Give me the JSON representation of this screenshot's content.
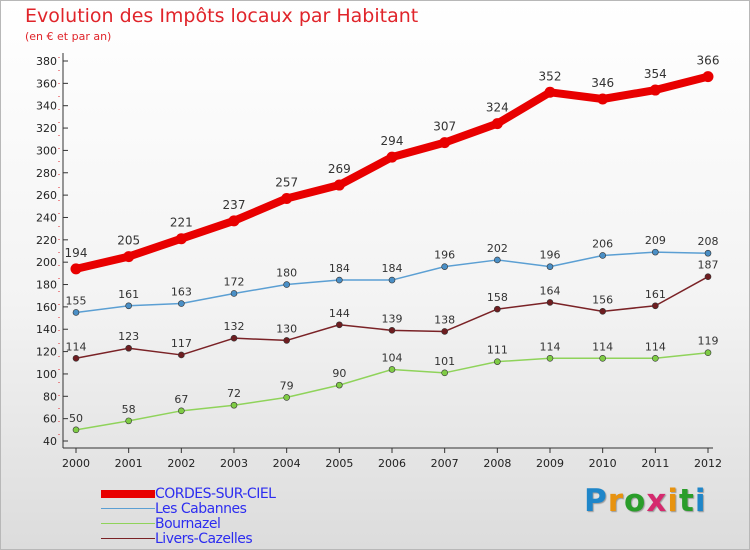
{
  "title": "Evolution des Impôts locaux par Habitant",
  "subtitle": "(en € et par an)",
  "logo": {
    "text": "Proxiti",
    "letters": [
      {
        "ch": "P",
        "color": "#1f86c9"
      },
      {
        "ch": "r",
        "color": "#e8930f"
      },
      {
        "ch": "o",
        "color": "#2a9d2a"
      },
      {
        "ch": "x",
        "color": "#d52a6e"
      },
      {
        "ch": "i",
        "color": "#e8930f"
      },
      {
        "ch": "t",
        "color": "#2a9d2a"
      },
      {
        "ch": "i",
        "color": "#1f86c9"
      }
    ]
  },
  "chart_data": {
    "type": "line",
    "x": [
      "2000",
      "2001",
      "2002",
      "2003",
      "2004",
      "2005",
      "2006",
      "2007",
      "2008",
      "2009",
      "2010",
      "2011",
      "2012"
    ],
    "ylim": [
      40,
      380
    ],
    "yticks": [
      40,
      60,
      80,
      100,
      120,
      140,
      160,
      180,
      200,
      220,
      240,
      260,
      280,
      300,
      320,
      340,
      360,
      380
    ],
    "grid": false,
    "legend_position": "bottom-left",
    "series": [
      {
        "name": "CORDES-SUR-CIEL",
        "color": "#e80000",
        "values": [
          194,
          205,
          221,
          237,
          257,
          269,
          294,
          307,
          324,
          352,
          346,
          354,
          366
        ]
      },
      {
        "name": "Les Cabannes",
        "color": "#5b9fd3",
        "values": [
          155,
          161,
          163,
          172,
          180,
          184,
          184,
          196,
          202,
          196,
          206,
          209,
          208
        ]
      },
      {
        "name": "Bournazel",
        "color": "#8fd35a",
        "values": [
          50,
          58,
          67,
          72,
          79,
          90,
          104,
          101,
          111,
          114,
          114,
          114,
          119
        ]
      },
      {
        "name": "Livers-Cazelles",
        "color": "#7a2226",
        "values": [
          114,
          123,
          117,
          132,
          130,
          144,
          139,
          138,
          158,
          164,
          156,
          161,
          187
        ]
      }
    ]
  }
}
